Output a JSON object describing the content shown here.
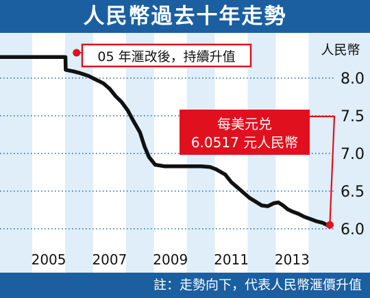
{
  "title": "人民幣過去十年走勢",
  "note": "註：走勢向下，代表人民幣滙價升值",
  "colors": {
    "header": "#1b5fa0",
    "plot_background": "#dfeef8",
    "stripe": "#ffffff",
    "line": "#111111",
    "annotation": "#e0101e",
    "axis_text": "#111111"
  },
  "chart_data": {
    "type": "line",
    "title": "人民幣過去十年走勢",
    "xlabel": "",
    "ylabel": "人民幣",
    "x_ticks": [
      "2005",
      "2007",
      "2009",
      "2011",
      "2013"
    ],
    "y_ticks": [
      "8.0",
      "7.5",
      "7.0",
      "6.5",
      "6.0"
    ],
    "xlim": [
      2003.4,
      2014.5
    ],
    "ylim": [
      5.8,
      8.4
    ],
    "grid": "horizontal dotted",
    "series": [
      {
        "name": "",
        "points": [
          [
            2003.4,
            8.28
          ],
          [
            2005.55,
            8.28
          ],
          [
            2005.56,
            8.11
          ],
          [
            2005.8,
            8.09
          ],
          [
            2006.0,
            8.07
          ],
          [
            2006.3,
            8.03
          ],
          [
            2006.5,
            7.99
          ],
          [
            2006.8,
            7.93
          ],
          [
            2007.0,
            7.86
          ],
          [
            2007.2,
            7.76
          ],
          [
            2007.4,
            7.68
          ],
          [
            2007.6,
            7.57
          ],
          [
            2007.8,
            7.42
          ],
          [
            2008.0,
            7.28
          ],
          [
            2008.15,
            7.09
          ],
          [
            2008.3,
            6.95
          ],
          [
            2008.5,
            6.85
          ],
          [
            2008.8,
            6.83
          ],
          [
            2009.0,
            6.83
          ],
          [
            2009.3,
            6.83
          ],
          [
            2009.6,
            6.83
          ],
          [
            2010.0,
            6.83
          ],
          [
            2010.3,
            6.82
          ],
          [
            2010.5,
            6.79
          ],
          [
            2010.8,
            6.72
          ],
          [
            2011.0,
            6.62
          ],
          [
            2011.2,
            6.55
          ],
          [
            2011.4,
            6.48
          ],
          [
            2011.6,
            6.41
          ],
          [
            2011.8,
            6.36
          ],
          [
            2012.0,
            6.31
          ],
          [
            2012.2,
            6.3
          ],
          [
            2012.4,
            6.34
          ],
          [
            2012.55,
            6.35
          ],
          [
            2012.7,
            6.31
          ],
          [
            2012.85,
            6.26
          ],
          [
            2013.0,
            6.23
          ],
          [
            2013.2,
            6.2
          ],
          [
            2013.4,
            6.16
          ],
          [
            2013.6,
            6.13
          ],
          [
            2013.8,
            6.1
          ],
          [
            2014.0,
            6.08
          ],
          [
            2014.15,
            6.05
          ]
        ]
      }
    ],
    "annotations": [
      {
        "text": "05 年滙改後，持續升值",
        "at": [
          2005.6,
          8.3
        ]
      },
      {
        "lines": [
          "每美元兑",
          "6.0517 元人民幣"
        ],
        "at": [
          2014.15,
          6.0517
        ]
      }
    ]
  }
}
